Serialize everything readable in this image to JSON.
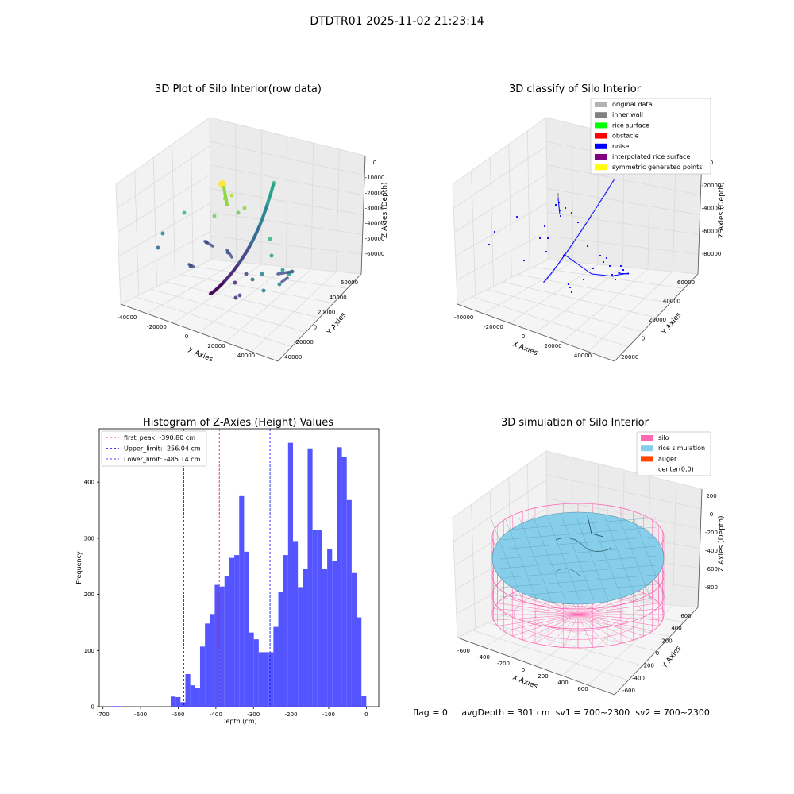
{
  "suptitle": "DTDTR01 2025-11-02 21:23:14",
  "status_text": "flag = 0     avgDepth = 301 cm  sv1 = 700~2300  sv2 = 700~2300",
  "colors": {
    "hist_bar": "#4c4cff",
    "peak_line": "#ff0000",
    "limit_line": "#0000ff",
    "silo": "#ff69b4",
    "rice": "#87ceeb",
    "noise": "#0000ff"
  },
  "chart_data": [
    {
      "type": "scatter",
      "title": "3D Plot of Silo Interior(row data)",
      "xlabel": "X Axies",
      "ylabel": "Y Axies",
      "zlabel": "Z Axies (Depth)",
      "x_ticks": [
        "-40000",
        "-20000",
        "0",
        "20000",
        "40000"
      ],
      "y_ticks": [
        "-40000",
        "-20000",
        "0",
        "20000",
        "40000",
        "60000"
      ],
      "z_ticks": [
        "0",
        "-10000",
        "-20000",
        "-30000",
        "-40000",
        "-50000",
        "-60000"
      ],
      "colormap": "viridis"
    },
    {
      "type": "scatter",
      "title": "3D classify of Silo Interior",
      "xlabel": "X Axies",
      "ylabel": "Y Axies",
      "zlabel": "Z Axies (Depth)",
      "x_ticks": [
        "-40000",
        "-20000",
        "0",
        "20000",
        "40000"
      ],
      "y_ticks": [
        "-20000",
        "0",
        "20000",
        "40000",
        "60000"
      ],
      "z_ticks": [
        "0",
        "-20000",
        "-40000",
        "-60000",
        "-80000"
      ],
      "legend_position": "top-right",
      "legend": [
        {
          "label": "original data",
          "color": "#b3b3b3"
        },
        {
          "label": "inner wall",
          "color": "#808080"
        },
        {
          "label": "rice surface",
          "color": "#00ff00"
        },
        {
          "label": "obstacle",
          "color": "#ff0000"
        },
        {
          "label": "noise",
          "color": "#0000ff"
        },
        {
          "label": "interpolated rice surface",
          "color": "#800080"
        },
        {
          "label": "symmetric generated points",
          "color": "#ffff00"
        }
      ]
    },
    {
      "type": "bar",
      "title": "Histogram of Z-Axies (Height) Values",
      "xlabel": "Depth (cm)",
      "ylabel": "Frequency",
      "xlim": [
        -710,
        33
      ],
      "ylim": [
        0,
        495
      ],
      "x_ticks": [
        -700,
        -600,
        -500,
        -400,
        -300,
        -200,
        -100,
        0
      ],
      "y_ticks": [
        0,
        100,
        200,
        300,
        400
      ],
      "bins": [
        [
          -680,
          -665,
          1
        ],
        [
          -665,
          -650,
          1
        ],
        [
          -520,
          -507,
          18
        ],
        [
          -507,
          -494,
          17
        ],
        [
          -494,
          -481,
          8
        ],
        [
          -481,
          -468,
          58
        ],
        [
          -468,
          -455,
          38
        ],
        [
          -455,
          -442,
          33
        ],
        [
          -442,
          -429,
          107
        ],
        [
          -429,
          -416,
          148
        ],
        [
          -416,
          -403,
          165
        ],
        [
          -403,
          -390,
          217
        ],
        [
          -390,
          -377,
          214
        ],
        [
          -377,
          -364,
          233
        ],
        [
          -364,
          -351,
          265
        ],
        [
          -351,
          -338,
          270
        ],
        [
          -338,
          -325,
          375
        ],
        [
          -325,
          -312,
          276
        ],
        [
          -312,
          -299,
          132
        ],
        [
          -299,
          -286,
          120
        ],
        [
          -286,
          -273,
          97
        ],
        [
          -273,
          -260,
          97
        ],
        [
          -260,
          -247,
          97
        ],
        [
          -247,
          -234,
          142
        ],
        [
          -234,
          -221,
          205
        ],
        [
          -221,
          -208,
          270
        ],
        [
          -208,
          -195,
          470
        ],
        [
          -195,
          -182,
          295
        ],
        [
          -182,
          -169,
          213
        ],
        [
          -169,
          -156,
          245
        ],
        [
          -156,
          -143,
          460
        ],
        [
          -143,
          -130,
          315
        ],
        [
          -130,
          -117,
          315
        ],
        [
          -117,
          -104,
          245
        ],
        [
          -104,
          -91,
          280
        ],
        [
          -91,
          -78,
          260
        ],
        [
          -78,
          -65,
          462
        ],
        [
          -65,
          -52,
          445
        ],
        [
          -52,
          -39,
          368
        ],
        [
          -39,
          -26,
          238
        ],
        [
          -26,
          -13,
          159
        ],
        [
          -13,
          0,
          19
        ]
      ],
      "lines": [
        {
          "label": "first_peak: -390.80 cm",
          "x": -390.8,
          "color": "#ff0000"
        },
        {
          "label": "Upper_limit: -256.04 cm",
          "x": -256.04,
          "color": "#0000ff"
        },
        {
          "label": "Lower_limit: -485.14 cm",
          "x": -485.14,
          "color": "#0000ff"
        }
      ],
      "legend_position": "top-left"
    },
    {
      "type": "surface",
      "title": "3D simulation of Silo Interior",
      "xlabel": "X Axies",
      "ylabel": "Y Axies",
      "zlabel": "Z Axies (Depth)",
      "x_ticks": [
        "-600",
        "-400",
        "-200",
        "0",
        "200",
        "400",
        "600"
      ],
      "y_ticks": [
        "-600",
        "-400",
        "-200",
        "0",
        "200",
        "400",
        "600"
      ],
      "z_ticks": [
        "200",
        "0",
        "-200",
        "-400",
        "-600",
        "-800"
      ],
      "legend_position": "top-right",
      "legend": [
        {
          "label": "silo",
          "color": "#ff69b4"
        },
        {
          "label": "rice simulation",
          "color": "#87ceeb"
        },
        {
          "label": "auger",
          "color": "#ff4500"
        },
        {
          "label": "center(0,0)",
          "color": ""
        }
      ]
    }
  ]
}
